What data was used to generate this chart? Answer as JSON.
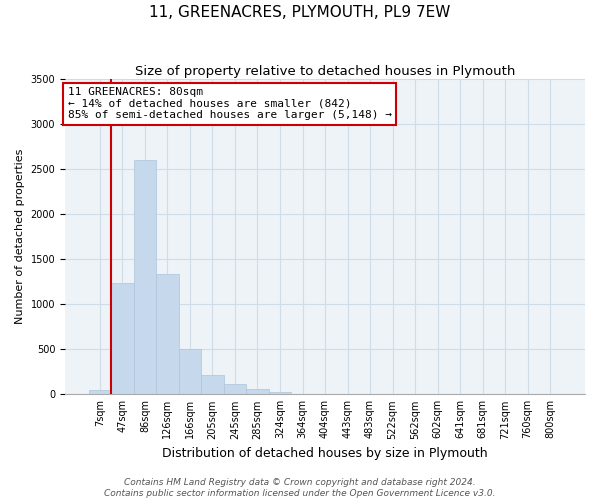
{
  "title": "11, GREENACRES, PLYMOUTH, PL9 7EW",
  "subtitle": "Size of property relative to detached houses in Plymouth",
  "xlabel": "Distribution of detached houses by size in Plymouth",
  "ylabel": "Number of detached properties",
  "bar_labels": [
    "7sqm",
    "47sqm",
    "86sqm",
    "126sqm",
    "166sqm",
    "205sqm",
    "245sqm",
    "285sqm",
    "324sqm",
    "364sqm",
    "404sqm",
    "443sqm",
    "483sqm",
    "522sqm",
    "562sqm",
    "602sqm",
    "641sqm",
    "681sqm",
    "721sqm",
    "760sqm",
    "800sqm"
  ],
  "bar_values": [
    50,
    1240,
    2600,
    1340,
    500,
    210,
    110,
    55,
    30,
    0,
    0,
    0,
    0,
    0,
    0,
    0,
    0,
    0,
    0,
    0,
    0
  ],
  "bar_color": "#c6d9ec",
  "bar_edge_color": "#adc4db",
  "property_line_color": "#cc0000",
  "property_line_x": 0.5,
  "ylim": [
    0,
    3500
  ],
  "yticks": [
    0,
    500,
    1000,
    1500,
    2000,
    2500,
    3000,
    3500
  ],
  "annotation_title": "11 GREENACRES: 80sqm",
  "annotation_line1": "← 14% of detached houses are smaller (842)",
  "annotation_line2": "85% of semi-detached houses are larger (5,148) →",
  "annotation_box_color": "white",
  "annotation_box_edgecolor": "#cc0000",
  "grid_color": "#d0dce8",
  "footer_line1": "Contains HM Land Registry data © Crown copyright and database right 2024.",
  "footer_line2": "Contains public sector information licensed under the Open Government Licence v3.0.",
  "title_fontsize": 11,
  "subtitle_fontsize": 9.5,
  "xlabel_fontsize": 9,
  "ylabel_fontsize": 8,
  "tick_fontsize": 7,
  "annot_fontsize": 8,
  "footer_fontsize": 6.5
}
